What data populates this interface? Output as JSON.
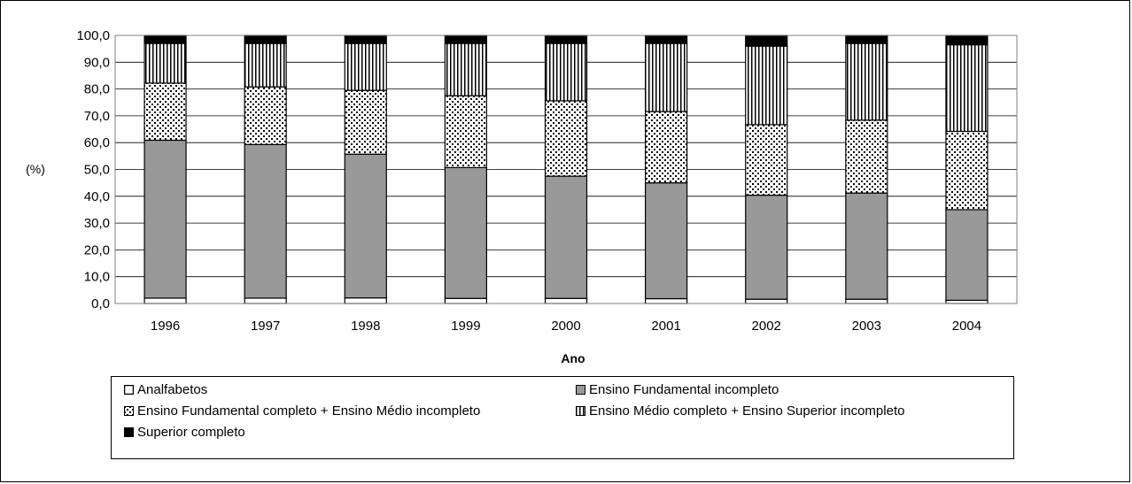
{
  "chart_data": {
    "type": "bar",
    "stacked": true,
    "ylabel": "(%)",
    "xlabel": "Ano",
    "ylim": [
      0,
      100
    ],
    "yticks": [
      "0,0",
      "10,0",
      "20,0",
      "30,0",
      "40,0",
      "50,0",
      "60,0",
      "70,0",
      "80,0",
      "90,0",
      "100,0"
    ],
    "categories": [
      "1996",
      "1997",
      "1998",
      "1999",
      "2000",
      "2001",
      "2002",
      "2003",
      "2004"
    ],
    "grid": true,
    "legend_position": "bottom",
    "series": [
      {
        "name": "Analfabetos",
        "pattern": "white",
        "values": [
          2.0,
          2.0,
          2.1,
          1.9,
          1.9,
          1.8,
          1.6,
          1.6,
          1.2
        ]
      },
      {
        "name": "Ensino Fundamental  incompleto",
        "pattern": "gray",
        "color": "#999999",
        "values": [
          58.9,
          57.3,
          53.6,
          48.8,
          45.6,
          43.2,
          38.8,
          39.6,
          33.8
        ]
      },
      {
        "name": "Ensino Fundamental completo + Ensino Médio incompleto",
        "pattern": "dots",
        "values": [
          21.3,
          21.5,
          23.8,
          26.8,
          28.1,
          26.6,
          26.3,
          27.2,
          29.2
        ]
      },
      {
        "name": "Ensino Médio completo +  Ensino Superior incompleto",
        "pattern": "vstripes",
        "values": [
          14.8,
          16.2,
          17.5,
          19.5,
          21.4,
          25.4,
          29.3,
          28.6,
          32.3
        ]
      },
      {
        "name": "Superior completo",
        "pattern": "black",
        "color": "#000000",
        "values": [
          3.0,
          3.0,
          3.0,
          3.0,
          3.0,
          3.0,
          4.0,
          3.0,
          3.5
        ]
      }
    ]
  }
}
